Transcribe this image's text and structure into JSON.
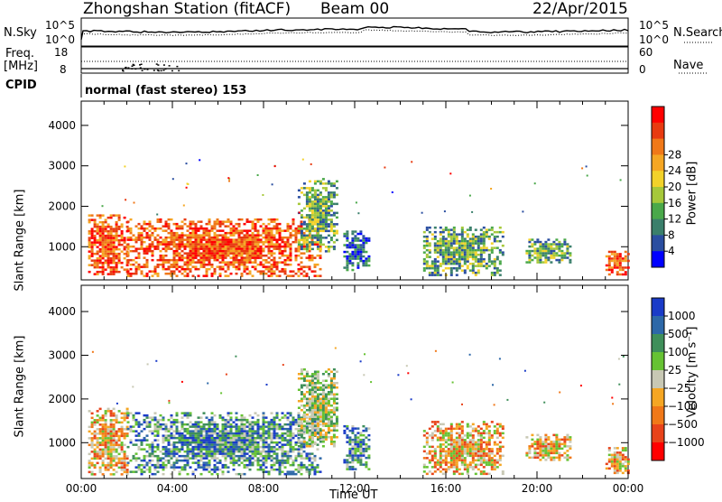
{
  "header": {
    "station": "Zhongshan Station (fitACF)",
    "beam": "Beam 00",
    "date": "22/Apr/2015"
  },
  "noise_panel": {
    "left_label": "N.Sky",
    "right_label": "N.Search",
    "scale_top": "10^5",
    "scale_bottom": "10^0"
  },
  "freq_panel": {
    "left_label_1": "Freq.",
    "left_label_2": "[MHz]",
    "right_label": "Nave",
    "left_top": "18",
    "left_bottom": "8",
    "right_top": "60",
    "right_bottom": "0"
  },
  "cpid_panel": {
    "label": "CPID",
    "text": "normal (fast stereo) 153"
  },
  "chart_data": [
    {
      "type": "heatmap",
      "panel": "power",
      "ylabel": "Slant Range [km]",
      "xlabel": "",
      "ylim": [
        180,
        4600
      ],
      "yticks": [
        "1000",
        "2000",
        "3000",
        "4000"
      ],
      "xlim_hours": [
        0,
        24
      ],
      "colorbar_label": "Power [dB]",
      "colorbar_ticks": [
        "4",
        "8",
        "12",
        "16",
        "20",
        "24",
        "28"
      ],
      "colorbar_colors": [
        "#0000ff",
        "#2a4ea0",
        "#3a7f6b",
        "#4aa84a",
        "#a6c83a",
        "#f2d22a",
        "#f5a623",
        "#f07818",
        "#e83a10",
        "#ff0000"
      ],
      "echo_regions": [
        {
          "t_start": 0.3,
          "t_end": 2.0,
          "r_low": 300,
          "r_high": 1800,
          "level": "high"
        },
        {
          "t_start": 2.0,
          "t_end": 10.5,
          "r_low": 300,
          "r_high": 1700,
          "level": "high"
        },
        {
          "t_start": 9.5,
          "t_end": 11.2,
          "r_low": 900,
          "r_high": 2700,
          "level": "medium"
        },
        {
          "t_start": 11.5,
          "t_end": 12.6,
          "r_low": 400,
          "r_high": 1400,
          "level": "low"
        },
        {
          "t_start": 15.0,
          "t_end": 18.5,
          "r_low": 300,
          "r_high": 1500,
          "level": "medium"
        },
        {
          "t_start": 19.5,
          "t_end": 21.5,
          "r_low": 600,
          "r_high": 1200,
          "level": "medium"
        },
        {
          "t_start": 23.0,
          "t_end": 24.0,
          "r_low": 300,
          "r_high": 900,
          "level": "high"
        }
      ]
    },
    {
      "type": "heatmap",
      "panel": "velocity",
      "ylabel": "Slant Range [km]",
      "xlabel": "Time UT",
      "ylim": [
        180,
        4600
      ],
      "yticks": [
        "1000",
        "2000",
        "3000",
        "4000"
      ],
      "xticks": [
        "00:00",
        "04:00",
        "08:00",
        "12:00",
        "16:00",
        "20:00",
        "00:00"
      ],
      "xlim_hours": [
        0,
        24
      ],
      "colorbar_label": "Velocity [m s⁻¹]",
      "colorbar_ticks": [
        "1000",
        "500",
        "100",
        "25",
        "−25",
        "−100",
        "−500",
        "−1000"
      ],
      "colorbar_colors": [
        "#1a3bc8",
        "#2d68a8",
        "#3f8f5a",
        "#66c233",
        "#c8c8b4",
        "#f5a623",
        "#f07818",
        "#e8431a",
        "#ff0000"
      ],
      "echo_regions": [
        {
          "t_start": 0.3,
          "t_end": 2.0,
          "r_low": 300,
          "r_high": 1800,
          "level": "negative"
        },
        {
          "t_start": 2.0,
          "t_end": 10.5,
          "r_low": 300,
          "r_high": 1700,
          "level": "positive"
        },
        {
          "t_start": 9.5,
          "t_end": 11.2,
          "r_low": 900,
          "r_high": 2700,
          "level": "near-zero"
        },
        {
          "t_start": 11.5,
          "t_end": 12.6,
          "r_low": 400,
          "r_high": 1400,
          "level": "positive"
        },
        {
          "t_start": 15.0,
          "t_end": 18.5,
          "r_low": 300,
          "r_high": 1500,
          "level": "negative"
        },
        {
          "t_start": 19.5,
          "t_end": 21.5,
          "r_low": 600,
          "r_high": 1200,
          "level": "negative"
        },
        {
          "t_start": 23.0,
          "t_end": 24.0,
          "r_low": 300,
          "r_high": 900,
          "level": "negative"
        }
      ]
    }
  ]
}
